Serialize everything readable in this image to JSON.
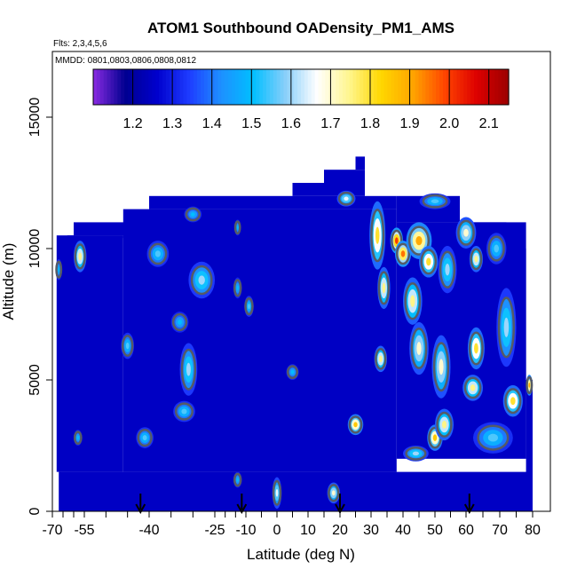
{
  "chart_data": {
    "type": "heatmap",
    "title": "ATOM1 Southbound OADensity_PM1_AMS",
    "flights_label": "Flts: 2,3,4,5,6",
    "dates_label": "MMDD: 0801,0803,0806,0808,0812",
    "xlabel": "Latitude (deg N)",
    "ylabel": "Altitude (m)",
    "xlim": [
      -70,
      80
    ],
    "ylim": [
      0,
      17500
    ],
    "x_ticks": [
      "-70",
      "-55",
      "-40",
      "-25",
      "-10",
      "0",
      "10",
      "20",
      "30",
      "40",
      "50",
      "60",
      "70",
      "80"
    ],
    "x_tick_values": [
      -70,
      -55,
      -40,
      -25,
      -10,
      0,
      10,
      20,
      30,
      40,
      50,
      60,
      70,
      80
    ],
    "y_ticks": [
      "0",
      "5000",
      "10000",
      "15000"
    ],
    "y_tick_values": [
      0,
      5000,
      10000,
      15000
    ],
    "colorbar": {
      "min": 1.1,
      "max": 2.15,
      "ticks": [
        "1.2",
        "1.3",
        "1.4",
        "1.5",
        "1.6",
        "1.7",
        "1.8",
        "1.9",
        "2.0",
        "2.1"
      ],
      "tick_values": [
        1.2,
        1.3,
        1.4,
        1.5,
        1.6,
        1.7,
        1.8,
        1.9,
        2.0,
        2.1
      ],
      "colors": [
        "#8a2be2",
        "#000090",
        "#0000cd",
        "#1e3cff",
        "#1e90ff",
        "#00bfff",
        "#87cefa",
        "#ffffff",
        "#fff68f",
        "#ffd700",
        "#ffa500",
        "#ff4500",
        "#dd0000",
        "#9b0000"
      ]
    },
    "background_value": 1.25,
    "coverage": [
      {
        "x": [
          -68,
          -46
        ],
        "y": [
          1500,
          10500
        ]
      },
      {
        "x": [
          -63,
          -46
        ],
        "y": [
          10500,
          10500
        ]
      },
      {
        "x": [
          -60,
          -30
        ],
        "y": [
          10500,
          11000
        ]
      },
      {
        "x": [
          -46,
          38
        ],
        "y": [
          1500,
          11500
        ]
      },
      {
        "x": [
          -40,
          -25
        ],
        "y": [
          11500,
          12000
        ]
      },
      {
        "x": [
          -25,
          38
        ],
        "y": [
          11500,
          12000
        ]
      },
      {
        "x": [
          5,
          28
        ],
        "y": [
          12000,
          12500
        ]
      },
      {
        "x": [
          15,
          28
        ],
        "y": [
          12500,
          13000
        ]
      },
      {
        "x": [
          25,
          28
        ],
        "y": [
          13000,
          13500
        ]
      },
      {
        "x": [
          38,
          78
        ],
        "y": [
          2000,
          11000
        ]
      },
      {
        "x": [
          38,
          58
        ],
        "y": [
          11000,
          12000
        ]
      },
      {
        "x": [
          58,
          72
        ],
        "y": [
          10000,
          11000
        ]
      },
      {
        "x": [
          72,
          78
        ],
        "y": [
          5000,
          10000
        ]
      },
      {
        "x": [
          78,
          80
        ],
        "y": [
          0,
          5000
        ]
      },
      {
        "x": [
          -67,
          80
        ],
        "y": [
          0,
          1500
        ]
      }
    ],
    "hotspots": [
      {
        "lat": -57,
        "alt": 9700,
        "value": 1.75,
        "rx": 2.5,
        "ry": 600
      },
      {
        "lat": -67,
        "alt": 9200,
        "value": 1.5,
        "rx": 1.5,
        "ry": 400
      },
      {
        "lat": -38,
        "alt": 9800,
        "value": 1.55,
        "rx": 2.5,
        "ry": 500
      },
      {
        "lat": -30,
        "alt": 11300,
        "value": 1.5,
        "rx": 2,
        "ry": 300
      },
      {
        "lat": -28,
        "alt": 8800,
        "value": 1.6,
        "rx": 3,
        "ry": 700
      },
      {
        "lat": -33,
        "alt": 7200,
        "value": 1.5,
        "rx": 2,
        "ry": 400
      },
      {
        "lat": -45,
        "alt": 6300,
        "value": 1.55,
        "rx": 1.5,
        "ry": 500
      },
      {
        "lat": -31,
        "alt": 5400,
        "value": 1.6,
        "rx": 2,
        "ry": 1000
      },
      {
        "lat": -32,
        "alt": 3800,
        "value": 1.55,
        "rx": 2.5,
        "ry": 400
      },
      {
        "lat": -41,
        "alt": 2800,
        "value": 1.55,
        "rx": 2,
        "ry": 400
      },
      {
        "lat": -58,
        "alt": 2800,
        "value": 1.5,
        "rx": 2,
        "ry": 300
      },
      {
        "lat": -14,
        "alt": 10800,
        "value": 1.5,
        "rx": 1.5,
        "ry": 300
      },
      {
        "lat": -14,
        "alt": 8500,
        "value": 1.5,
        "rx": 2,
        "ry": 400
      },
      {
        "lat": -9,
        "alt": 7800,
        "value": 1.55,
        "rx": 1.5,
        "ry": 400
      },
      {
        "lat": 5,
        "alt": 5300,
        "value": 1.5,
        "rx": 2,
        "ry": 300
      },
      {
        "lat": 0,
        "alt": 700,
        "value": 1.65,
        "rx": 1.5,
        "ry": 600
      },
      {
        "lat": -14,
        "alt": 1200,
        "value": 1.5,
        "rx": 2,
        "ry": 300
      },
      {
        "lat": 18,
        "alt": 700,
        "value": 1.7,
        "rx": 2,
        "ry": 400
      },
      {
        "lat": 22,
        "alt": 11900,
        "value": 1.65,
        "rx": 3,
        "ry": 300
      },
      {
        "lat": 25,
        "alt": 3300,
        "value": 1.85,
        "rx": 2.5,
        "ry": 400
      },
      {
        "lat": 33,
        "alt": 5800,
        "value": 1.75,
        "rx": 2,
        "ry": 500
      },
      {
        "lat": 32,
        "alt": 10500,
        "value": 1.8,
        "rx": 2.5,
        "ry": 1300
      },
      {
        "lat": 34,
        "alt": 8500,
        "value": 1.75,
        "rx": 2,
        "ry": 800
      },
      {
        "lat": 38,
        "alt": 10300,
        "value": 2.0,
        "rx": 2,
        "ry": 500
      },
      {
        "lat": 40,
        "alt": 9800,
        "value": 1.95,
        "rx": 2.5,
        "ry": 500
      },
      {
        "lat": 45,
        "alt": 10300,
        "value": 1.9,
        "rx": 4,
        "ry": 700
      },
      {
        "lat": 43,
        "alt": 8000,
        "value": 1.75,
        "rx": 3,
        "ry": 900
      },
      {
        "lat": 45,
        "alt": 6200,
        "value": 1.7,
        "rx": 3,
        "ry": 1000
      },
      {
        "lat": 48,
        "alt": 9500,
        "value": 1.8,
        "rx": 3,
        "ry": 600
      },
      {
        "lat": 50,
        "alt": 11800,
        "value": 1.55,
        "rx": 5,
        "ry": 300
      },
      {
        "lat": 50,
        "alt": 2800,
        "value": 1.85,
        "rx": 2.5,
        "ry": 500
      },
      {
        "lat": 53,
        "alt": 3300,
        "value": 1.75,
        "rx": 3,
        "ry": 600
      },
      {
        "lat": 54,
        "alt": 9200,
        "value": 1.6,
        "rx": 3,
        "ry": 900
      },
      {
        "lat": 52,
        "alt": 5500,
        "value": 1.7,
        "rx": 3,
        "ry": 1200
      },
      {
        "lat": 60,
        "alt": 10600,
        "value": 1.7,
        "rx": 3,
        "ry": 600
      },
      {
        "lat": 63,
        "alt": 9600,
        "value": 1.75,
        "rx": 2,
        "ry": 500
      },
      {
        "lat": 63,
        "alt": 6200,
        "value": 1.8,
        "rx": 2.5,
        "ry": 800
      },
      {
        "lat": 62,
        "alt": 4700,
        "value": 1.75,
        "rx": 3,
        "ry": 500
      },
      {
        "lat": 69,
        "alt": 10000,
        "value": 1.55,
        "rx": 3,
        "ry": 600
      },
      {
        "lat": 72,
        "alt": 7000,
        "value": 1.6,
        "rx": 3,
        "ry": 1500
      },
      {
        "lat": 74,
        "alt": 4200,
        "value": 1.8,
        "rx": 3,
        "ry": 600
      },
      {
        "lat": 79,
        "alt": 4800,
        "value": 1.9,
        "rx": 1.5,
        "ry": 400
      },
      {
        "lat": 68,
        "alt": 2800,
        "value": 1.55,
        "rx": 6,
        "ry": 600
      },
      {
        "lat": 44,
        "alt": 2200,
        "value": 1.6,
        "rx": 4,
        "ry": 300
      }
    ],
    "arrows_lat": [
      -42,
      -12,
      20,
      61
    ]
  }
}
